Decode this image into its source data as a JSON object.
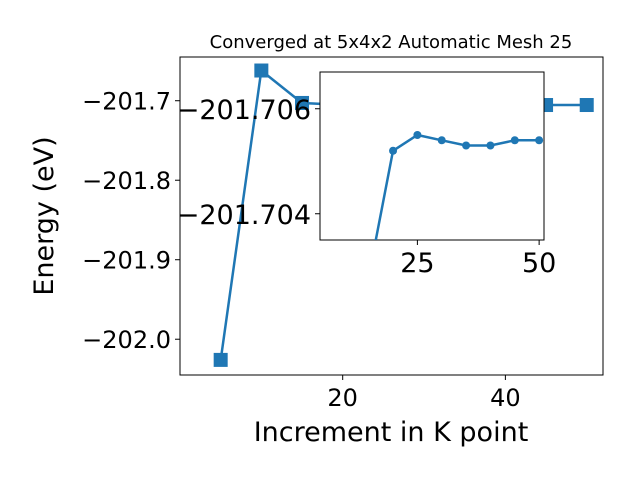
{
  "chart_data": [
    {
      "type": "line",
      "title": "Converged at 5x4x2 Automatic Mesh 25",
      "xlabel": "Increment in K point",
      "ylabel": "Energy (eV)",
      "xlim": [
        0,
        52
      ],
      "ylim": [
        -202.045,
        -201.645
      ],
      "xticks": [
        20,
        40
      ],
      "yticks": [
        -201.7,
        -201.8,
        -201.9,
        -202.0
      ],
      "xtick_labels": [
        "20",
        "40"
      ],
      "ytick_labels": [
        "−201.7",
        "−201.8",
        "−201.9",
        "−202.0"
      ],
      "marker": "square",
      "color": "#1f77b4",
      "series": [
        {
          "x": [
            5,
            10,
            15,
            20,
            25,
            30,
            35,
            40,
            45,
            50
          ],
          "values": [
            -202.026,
            -201.662,
            -201.7028,
            -201.7052,
            -201.7055,
            -201.7054,
            -201.7053,
            -201.7053,
            -201.7054,
            -201.7054
          ]
        }
      ]
    },
    {
      "type": "line",
      "title": "",
      "xlim": [
        5,
        51
      ],
      "ylim": [
        -201.7035,
        -201.7067
      ],
      "xticks": [
        25,
        50
      ],
      "yticks": [
        -201.706,
        -201.704
      ],
      "xtick_labels": [
        "25",
        "50"
      ],
      "ytick_labels": [
        "−201.706",
        "−201.704"
      ],
      "marker": "circle",
      "color": "#1f77b4",
      "series": [
        {
          "x": [
            15,
            20,
            25,
            30,
            35,
            40,
            45,
            50
          ],
          "values": [
            -201.7028,
            -201.7052,
            -201.7055,
            -201.7054,
            -201.7053,
            -201.7053,
            -201.7054,
            -201.7054
          ]
        }
      ]
    }
  ]
}
